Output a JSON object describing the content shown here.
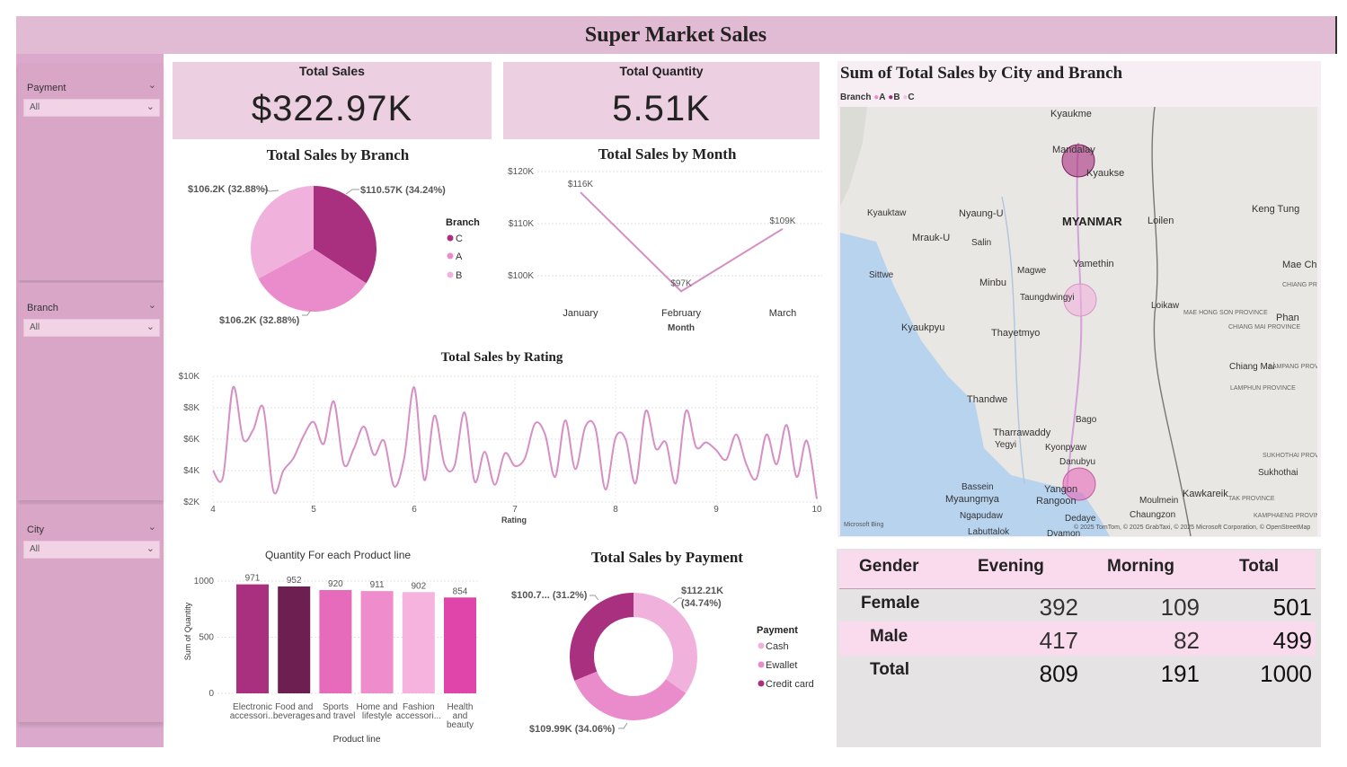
{
  "title": "Super Market Sales",
  "slicers": [
    {
      "label": "Payment",
      "value": "All"
    },
    {
      "label": "Branch",
      "value": "All"
    },
    {
      "label": "City",
      "value": "All"
    }
  ],
  "cards": {
    "sales": {
      "title": "Total Sales",
      "value": "$322.97K"
    },
    "quantity": {
      "title": "Total Quantity",
      "value": "5.51K"
    }
  },
  "colors": {
    "dark": "#a8307e",
    "mid": "#ea8ccb",
    "light": "#f0b2dc",
    "line": "#d68fc4",
    "darkest": "#6e1f52"
  },
  "chart_data": [
    {
      "id": "branch_pie",
      "type": "pie",
      "title": "Total Sales by Branch",
      "legend_title": "Branch",
      "legend": [
        "C",
        "A",
        "B"
      ],
      "slices": [
        {
          "name": "C",
          "value": 110.57,
          "label": "$110.57K (34.24%)",
          "color": "#a8307e"
        },
        {
          "name": "A",
          "value": 106.2,
          "label": "$106.2K (32.88%)",
          "color": "#ea8ccb"
        },
        {
          "name": "B",
          "value": 106.2,
          "label": "$106.2K (32.88%)",
          "color": "#f0b2dc"
        }
      ]
    },
    {
      "id": "month_line",
      "type": "line",
      "title": "Total Sales by Month",
      "xlabel": "Month",
      "categories": [
        "January",
        "February",
        "March"
      ],
      "values": [
        116,
        97,
        109
      ],
      "point_labels": [
        "$116K",
        "$97K",
        "$109K"
      ],
      "yticks": [
        "$100K",
        "$110K",
        "$120K"
      ],
      "ylim": [
        95,
        120
      ]
    },
    {
      "id": "rating_line",
      "type": "line",
      "title": "Total Sales by Rating",
      "xlabel": "Rating",
      "xticks": [
        "4",
        "5",
        "6",
        "7",
        "8",
        "9",
        "10"
      ],
      "yticks": [
        "$2K",
        "$4K",
        "$6K",
        "$8K",
        "$10K"
      ],
      "xlim": [
        4,
        10
      ],
      "ylim": [
        2,
        10
      ],
      "x": [
        4.0,
        4.1,
        4.2,
        4.3,
        4.4,
        4.5,
        4.6,
        4.7,
        4.8,
        4.9,
        5.0,
        5.1,
        5.2,
        5.3,
        5.4,
        5.5,
        5.6,
        5.7,
        5.8,
        5.9,
        6.0,
        6.1,
        6.2,
        6.3,
        6.4,
        6.5,
        6.6,
        6.7,
        6.8,
        6.9,
        7.0,
        7.1,
        7.2,
        7.3,
        7.4,
        7.5,
        7.6,
        7.7,
        7.8,
        7.9,
        8.0,
        8.1,
        8.2,
        8.3,
        8.4,
        8.5,
        8.6,
        8.7,
        8.8,
        8.9,
        9.0,
        9.1,
        9.2,
        9.3,
        9.4,
        9.5,
        9.6,
        9.7,
        9.8,
        9.9,
        10.0
      ],
      "y": [
        4.0,
        3.6,
        9.3,
        6.0,
        6.6,
        8.0,
        2.7,
        4.0,
        4.8,
        6.2,
        7.1,
        5.7,
        8.4,
        4.4,
        5.4,
        6.8,
        5.0,
        5.9,
        3.0,
        4.8,
        9.3,
        3.4,
        7.5,
        4.4,
        4.3,
        7.7,
        3.3,
        5.2,
        3.1,
        5.1,
        4.3,
        4.8,
        7.0,
        6.3,
        3.6,
        7.2,
        4.1,
        6.8,
        6.7,
        2.8,
        6.1,
        6.0,
        3.2,
        7.8,
        5.4,
        5.8,
        3.2,
        7.8,
        5.5,
        5.8,
        5.3,
        4.7,
        6.3,
        4.4,
        3.5,
        6.3,
        4.4,
        6.9,
        3.6,
        5.9,
        2.2
      ]
    },
    {
      "id": "productline_bar",
      "type": "bar",
      "title": "Quantity For each Product line",
      "xlabel": "Product line",
      "ylabel": "Sum of Quantity",
      "yticks": [
        "0",
        "500",
        "1000"
      ],
      "ylim": [
        0,
        1000
      ],
      "categories": [
        [
          "Electronic",
          "accessori..."
        ],
        [
          "Food and",
          "beverages"
        ],
        [
          "Sports",
          "and travel"
        ],
        [
          "Home and",
          "lifestyle"
        ],
        [
          "Fashion",
          "accessori..."
        ],
        [
          "Health",
          "and",
          "beauty"
        ]
      ],
      "values": [
        971,
        952,
        920,
        911,
        902,
        854
      ],
      "colors": [
        "#a8307e",
        "#6e1f52",
        "#e66bba",
        "#ee8ccc",
        "#f5b3de",
        "#e046aa"
      ]
    },
    {
      "id": "payment_donut",
      "type": "pie",
      "title": "Total Sales by Payment",
      "legend_title": "Payment",
      "legend": [
        "Cash",
        "Ewallet",
        "Credit card"
      ],
      "slices": [
        {
          "name": "Cash",
          "value": 112.21,
          "label": "$112.21K (34.74%)",
          "color": "#f0b2dc"
        },
        {
          "name": "Ewallet",
          "value": 109.99,
          "label": "$109.99K (34.06%)",
          "color": "#ea8ccb"
        },
        {
          "name": "Credit card",
          "value": 100.7,
          "label": "$100.7... (31.2%)",
          "color": "#a8307e"
        }
      ]
    }
  ],
  "map": {
    "title": "Sum of Total Sales by City and Branch",
    "legend_title": "Branch",
    "legend": [
      "A",
      "B",
      "C"
    ],
    "country": "MYANMAR",
    "places": [
      "Kyaukme",
      "Mandalay",
      "Kyaukse",
      "Kyauktaw",
      "Nyaung-U",
      "Loilen",
      "Keng Tung",
      "Mrauk-U",
      "Salin",
      "Yamethin",
      "Mae Ch",
      "Sittwe",
      "Magwe",
      "Minbu",
      "Taungdwingyi",
      "Loikaw",
      "Phan",
      "Kyaukpyu",
      "Thayetmyo",
      "Chiang Mai",
      "Thandwe",
      "Bago",
      "Tharrawaddy",
      "Yegyi",
      "Kyonpyaw",
      "Danubyu",
      "Bassein",
      "Myaungmya",
      "Yangon",
      "Rangoon",
      "Moulmein",
      "Kawkareik",
      "Sukhothai",
      "Ngapudaw",
      "Dedaye",
      "Chaungzon",
      "Labuttalok",
      "Dyamon"
    ],
    "small_labels": [
      "MAE HONG SON PROVINCE",
      "CHIANG MAI PROVINCE",
      "LAMPANG PROVINCE",
      "LAMPHUN PROVINCE",
      "SUKHOTHAI PROVINCE",
      "TAK PROVINCE",
      "KAMPHAENG PROVINCE",
      "CHIANG PROVIN"
    ],
    "bing": "Microsoft Bing",
    "attribution": "© 2025 TomTom, © 2025 GrabTaxi, © 2025 Microsoft Corporation, © OpenStreetMap",
    "points": [
      {
        "city": "Mandalay",
        "branch": "C",
        "value": 110.57
      },
      {
        "city": "Taungdwingyi",
        "branch": "B",
        "value": 106.2
      },
      {
        "city": "Yangon",
        "branch": "A",
        "value": 106.2
      }
    ]
  },
  "table": {
    "headers": [
      "Gender",
      "Evening",
      "Morning",
      "Total"
    ],
    "rows": [
      [
        "Female",
        "392",
        "109",
        "501"
      ],
      [
        "Male",
        "417",
        "82",
        "499"
      ],
      [
        "Total",
        "809",
        "191",
        "1000"
      ]
    ]
  }
}
